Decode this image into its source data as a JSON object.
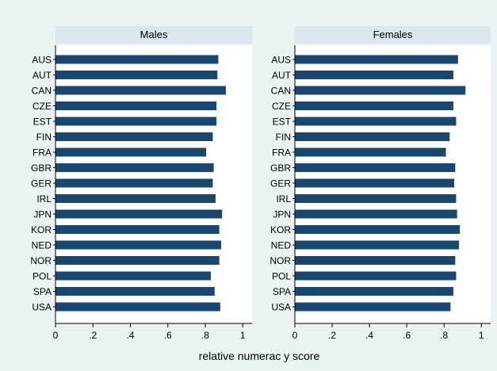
{
  "chart_data": {
    "type": "bar",
    "orientation": "horizontal",
    "xlabel": "relative numerac y score",
    "xlim": [
      0,
      1.05
    ],
    "xticks": [
      0,
      0.2,
      0.4,
      0.6,
      0.8,
      1
    ],
    "xtick_labels": [
      "0",
      ".2",
      ".4",
      ".6",
      ".8",
      "1"
    ],
    "grid": false,
    "categories": [
      "AUS",
      "AUT",
      "CAN",
      "CZE",
      "EST",
      "FIN",
      "FRA",
      "GBR",
      "GER",
      "IRL",
      "JPN",
      "KOR",
      "NED",
      "NOR",
      "POL",
      "SPA",
      "USA"
    ],
    "panels": [
      {
        "title": "Males",
        "values": [
          0.87,
          0.865,
          0.91,
          0.86,
          0.86,
          0.84,
          0.805,
          0.845,
          0.84,
          0.855,
          0.89,
          0.875,
          0.885,
          0.875,
          0.83,
          0.85,
          0.88
        ]
      },
      {
        "title": "Females",
        "values": [
          0.875,
          0.85,
          0.915,
          0.85,
          0.865,
          0.83,
          0.81,
          0.86,
          0.855,
          0.865,
          0.87,
          0.885,
          0.88,
          0.86,
          0.865,
          0.85,
          0.835
        ]
      }
    ],
    "colors": {
      "bar": "#1a476f",
      "background": "#eaf2f3",
      "plot": "#ffffff",
      "header": "#d9e6eb"
    }
  }
}
